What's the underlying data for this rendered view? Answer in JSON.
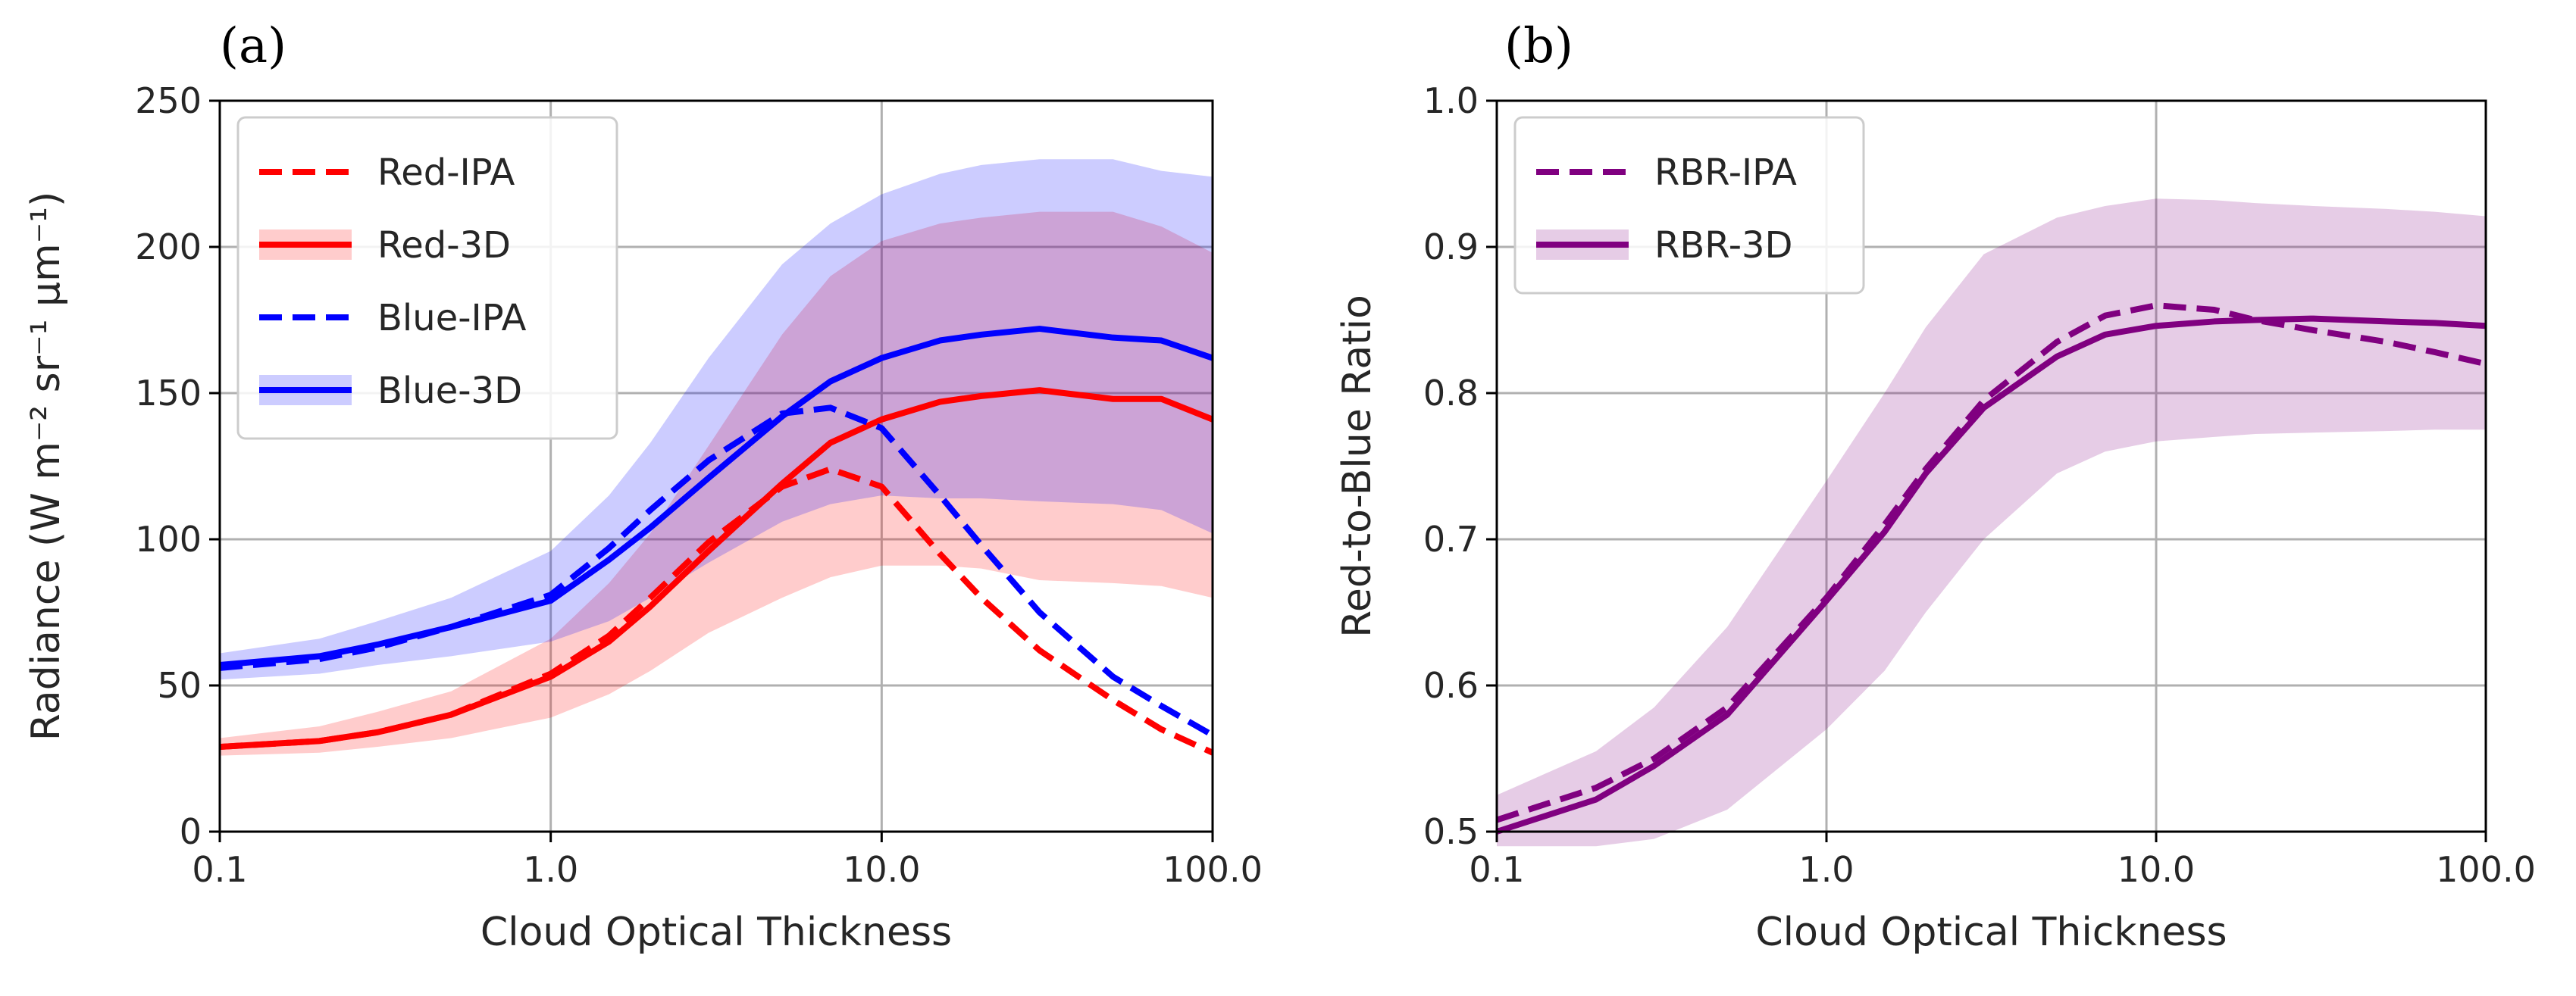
{
  "chart_data": [
    {
      "type": "line",
      "panel_label": "(a)",
      "xlabel": "Cloud Optical Thickness",
      "ylabel": "Radiance (W m⁻² sr⁻¹ µm⁻¹)",
      "xscale": "log",
      "xlim": [
        0.1,
        100.0
      ],
      "ylim": [
        0,
        250
      ],
      "xticks": [
        "0.1",
        "1.0",
        "10.0",
        "100.0"
      ],
      "yticks": [
        "0",
        "50",
        "100",
        "150",
        "200",
        "250"
      ],
      "grid": true,
      "legend_position": "top-left",
      "x": [
        0.1,
        0.2,
        0.3,
        0.5,
        1.0,
        1.5,
        2.0,
        3.0,
        5.0,
        7.0,
        10.0,
        15.0,
        20.0,
        30.0,
        50.0,
        70.0,
        100.0
      ],
      "series": [
        {
          "name": "Red-IPA",
          "style": "dashed",
          "color": "#ff0000",
          "values": [
            29,
            31,
            34,
            40,
            54,
            67,
            80,
            99,
            118,
            124,
            118,
            95,
            80,
            62,
            45,
            35,
            27
          ]
        },
        {
          "name": "Red-3D",
          "style": "solid",
          "color": "#ff0000",
          "values": [
            29,
            31,
            34,
            40,
            53,
            65,
            77,
            96,
            119,
            133,
            141,
            147,
            149,
            151,
            148,
            148,
            141
          ],
          "band_lower": [
            26,
            27,
            29,
            32,
            39,
            47,
            55,
            68,
            80,
            87,
            91,
            91,
            90,
            86,
            85,
            84,
            80
          ],
          "band_upper": [
            32,
            36,
            41,
            48,
            66,
            85,
            102,
            132,
            170,
            190,
            202,
            208,
            210,
            212,
            212,
            207,
            198
          ]
        },
        {
          "name": "Blue-IPA",
          "style": "dashed",
          "color": "#0000ff",
          "values": [
            56,
            59,
            63,
            70,
            81,
            97,
            110,
            127,
            143,
            145,
            138,
            115,
            98,
            75,
            53,
            43,
            33
          ]
        },
        {
          "name": "Blue-3D",
          "style": "solid",
          "color": "#0000ff",
          "values": [
            57,
            60,
            64,
            70,
            79,
            93,
            104,
            121,
            142,
            154,
            162,
            168,
            170,
            172,
            169,
            168,
            162
          ],
          "band_lower": [
            52,
            54,
            57,
            60,
            65,
            72,
            80,
            92,
            106,
            112,
            115,
            114,
            114,
            113,
            112,
            110,
            102
          ],
          "band_upper": [
            61,
            66,
            72,
            80,
            96,
            115,
            133,
            162,
            194,
            208,
            218,
            225,
            228,
            230,
            230,
            226,
            224
          ]
        }
      ]
    },
    {
      "type": "line",
      "panel_label": "(b)",
      "xlabel": "Cloud Optical Thickness",
      "ylabel": "Red-to-Blue Ratio",
      "xscale": "log",
      "xlim": [
        0.1,
        100.0
      ],
      "ylim": [
        0.5,
        1.0
      ],
      "xticks": [
        "0.1",
        "1.0",
        "10.0",
        "100.0"
      ],
      "yticks": [
        "0.5",
        "0.6",
        "0.7",
        "0.8",
        "0.9",
        "1.0"
      ],
      "grid": true,
      "legend_position": "top-left",
      "x": [
        0.1,
        0.2,
        0.3,
        0.5,
        1.0,
        1.5,
        2.0,
        3.0,
        5.0,
        7.0,
        10.0,
        15.0,
        20.0,
        30.0,
        50.0,
        70.0,
        100.0
      ],
      "series": [
        {
          "name": "RBR-IPA",
          "style": "dashed",
          "color": "#800080",
          "values": [
            0.508,
            0.53,
            0.55,
            0.585,
            0.66,
            0.71,
            0.748,
            0.795,
            0.835,
            0.853,
            0.86,
            0.857,
            0.85,
            0.843,
            0.835,
            0.828,
            0.82
          ]
        },
        {
          "name": "RBR-3D",
          "style": "solid",
          "color": "#800080",
          "values": [
            0.5,
            0.522,
            0.545,
            0.58,
            0.658,
            0.705,
            0.745,
            0.79,
            0.825,
            0.84,
            0.846,
            0.849,
            0.85,
            0.851,
            0.849,
            0.848,
            0.846
          ],
          "band_lower": [
            0.49,
            0.49,
            0.495,
            0.515,
            0.57,
            0.61,
            0.65,
            0.7,
            0.745,
            0.76,
            0.767,
            0.77,
            0.772,
            0.773,
            0.774,
            0.775,
            0.775
          ],
          "band_upper": [
            0.525,
            0.555,
            0.585,
            0.64,
            0.74,
            0.8,
            0.845,
            0.895,
            0.92,
            0.928,
            0.933,
            0.932,
            0.93,
            0.928,
            0.926,
            0.924,
            0.921
          ]
        }
      ]
    }
  ]
}
